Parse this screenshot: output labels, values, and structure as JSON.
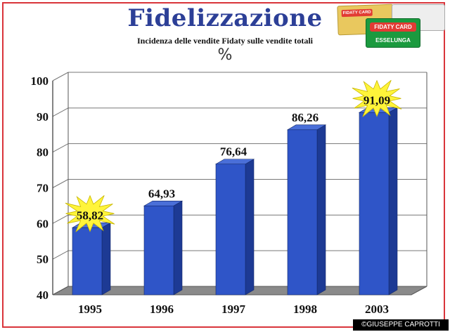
{
  "header": {
    "title": "Fidelizzazione",
    "subtitle": "Incidenza delle vendite Fidaty sulle vendite totali",
    "unit": "%"
  },
  "cards": {
    "yellow_card_text": "FIDATY CARD",
    "green_card_brand": "FIDATY CARD",
    "green_card_bottom": "ESSELUNGA"
  },
  "watermark": "©GIUSEPPE CAPROTTI",
  "colors": {
    "bar": "#2f55c8",
    "bar_side": "#1d3a94",
    "bar_top": "#4a6fd8",
    "title": "#2c3f97",
    "frame": "#d9343a",
    "starburst": "#fff43a"
  },
  "chart_data": {
    "type": "bar",
    "title": "Fidelizzazione",
    "subtitle": "Incidenza delle vendite Fidaty sulle vendite totali",
    "ylabel": "%",
    "xlabel": "",
    "categories": [
      "1995",
      "1996",
      "1997",
      "1998",
      "2003"
    ],
    "values": [
      58.82,
      64.93,
      76.64,
      86.26,
      91.09
    ],
    "value_labels": [
      "58,82",
      "64,93",
      "76,64",
      "86,26",
      "91,09"
    ],
    "highlighted": [
      true,
      false,
      false,
      false,
      true
    ],
    "ylim": [
      40,
      100
    ],
    "yticks": [
      40,
      50,
      60,
      70,
      80,
      90,
      100
    ],
    "grid": true,
    "legend": "none"
  }
}
